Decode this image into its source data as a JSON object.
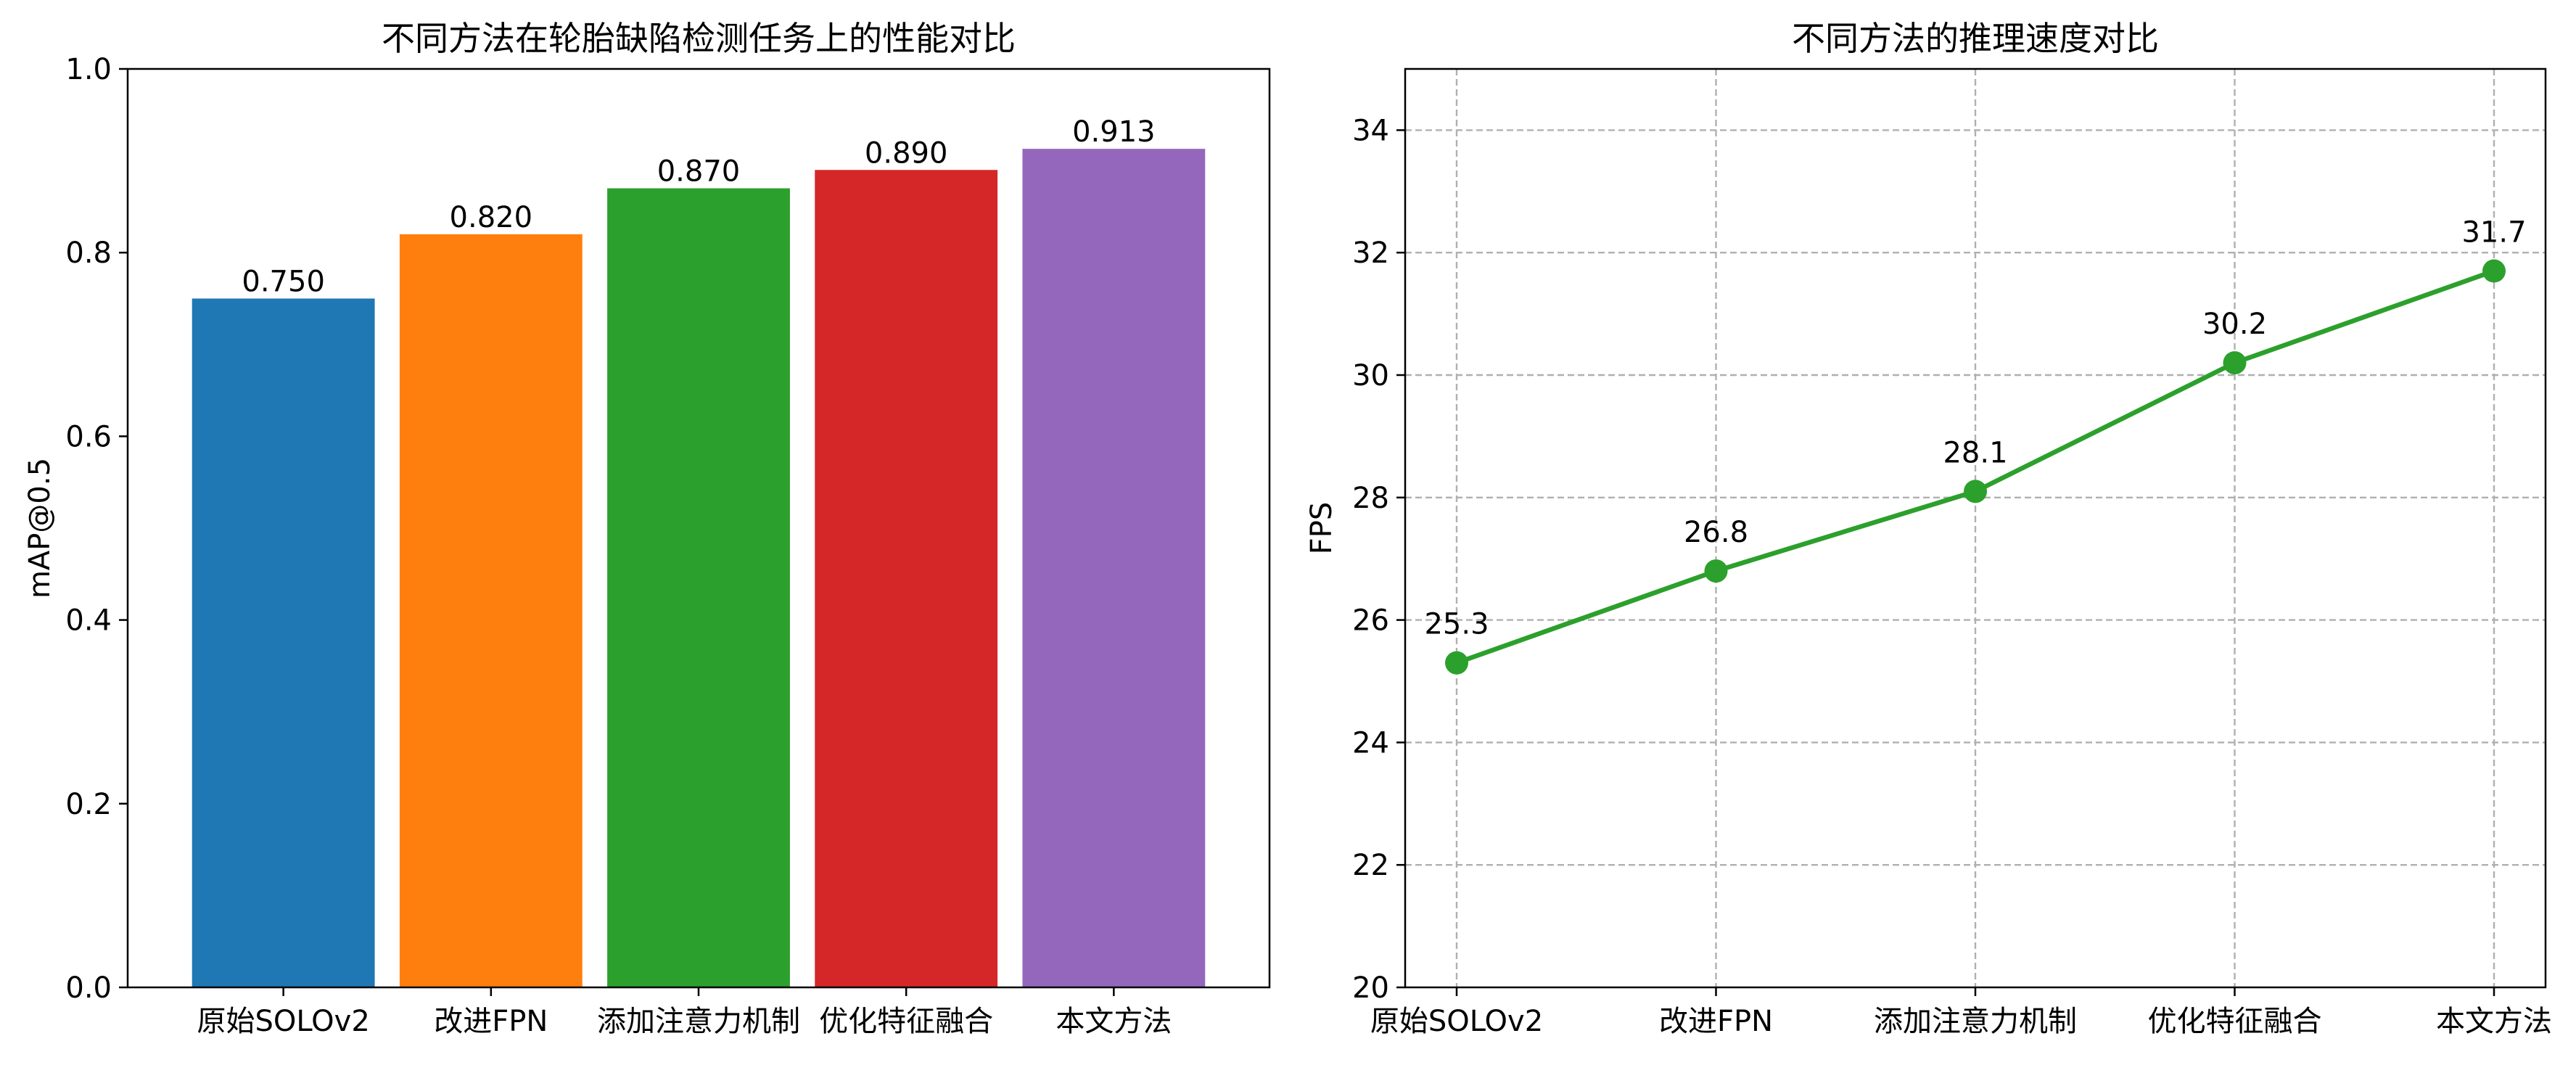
{
  "chart_data": [
    {
      "type": "bar",
      "title": "不同方法在轮胎缺陷检测任务上的性能对比",
      "xlabel": "",
      "ylabel": "mAP@0.5",
      "categories": [
        "原始SOLOv2",
        "改进FPN",
        "添加注意力机制",
        "优化特征融合",
        "本文方法"
      ],
      "values": [
        0.75,
        0.82,
        0.87,
        0.89,
        0.913
      ],
      "data_labels": [
        "0.750",
        "0.820",
        "0.870",
        "0.890",
        "0.913"
      ],
      "colors": [
        "#1f77b4",
        "#ff7f0e",
        "#2ca02c",
        "#d62728",
        "#9467bd"
      ],
      "ylim": [
        0.0,
        1.0
      ],
      "yticks": [
        "0.0",
        "0.2",
        "0.4",
        "0.6",
        "0.8",
        "1.0"
      ],
      "grid": false
    },
    {
      "type": "line",
      "title": "不同方法的推理速度对比",
      "xlabel": "",
      "ylabel": "FPS",
      "categories": [
        "原始SOLOv2",
        "改进FPN",
        "添加注意力机制",
        "优化特征融合",
        "本文方法"
      ],
      "values": [
        25.3,
        26.8,
        28.1,
        30.2,
        31.7
      ],
      "data_labels": [
        "25.3",
        "26.8",
        "28.1",
        "30.2",
        "31.7"
      ],
      "color": "#2ca02c",
      "marker": "circle",
      "ylim": [
        20,
        35
      ],
      "yticks": [
        "20",
        "22",
        "24",
        "26",
        "28",
        "30",
        "32",
        "34"
      ],
      "grid": true
    }
  ]
}
